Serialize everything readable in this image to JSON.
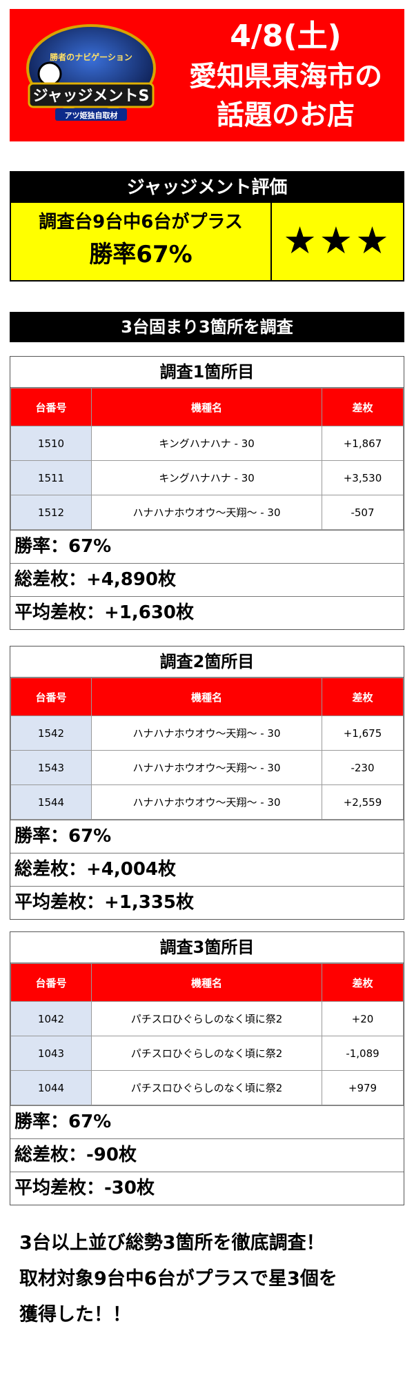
{
  "header": {
    "logo_text": "ジャッジメントS",
    "logo_subtext": "アツ姫独自取材",
    "logo_top_text": "勝者のナビゲーション",
    "date": "4/8(土)",
    "line1": "愛知県東海市の",
    "line2": "話題のお店",
    "bg_color": "#ff0000"
  },
  "judgment": {
    "title": "ジャッジメント評価",
    "line1": "調査台9台中6台がプラス",
    "line2": "勝率67%",
    "stars": "★★★",
    "star_count": 3
  },
  "section_title": "3台固まり3箇所を調査",
  "table_headers": {
    "number": "台番号",
    "model": "機種名",
    "diff": "差枚"
  },
  "surveys": [
    {
      "title": "調査1箇所目",
      "rows": [
        {
          "no": "1510",
          "model": "キングハナハナ - 30",
          "diff": "+1,867"
        },
        {
          "no": "1511",
          "model": "キングハナハナ - 30",
          "diff": "+3,530"
        },
        {
          "no": "1512",
          "model": "ハナハナホウオウ～天翔～ - 30",
          "diff": "-507"
        }
      ],
      "win_rate": "勝率：67%",
      "total": "総差枚：+4,890枚",
      "average": "平均差枚：+1,630枚"
    },
    {
      "title": "調査2箇所目",
      "rows": [
        {
          "no": "1542",
          "model": "ハナハナホウオウ～天翔～ - 30",
          "diff": "+1,675"
        },
        {
          "no": "1543",
          "model": "ハナハナホウオウ～天翔～ - 30",
          "diff": "-230"
        },
        {
          "no": "1544",
          "model": "ハナハナホウオウ～天翔～ - 30",
          "diff": "+2,559"
        }
      ],
      "win_rate": "勝率：67%",
      "total": "総差枚：+4,004枚",
      "average": "平均差枚：+1,335枚"
    },
    {
      "title": "調査3箇所目",
      "rows": [
        {
          "no": "1042",
          "model": "パチスロひぐらしのなく頃に祭2",
          "diff": "+20"
        },
        {
          "no": "1043",
          "model": "パチスロひぐらしのなく頃に祭2",
          "diff": "-1,089"
        },
        {
          "no": "1044",
          "model": "パチスロひぐらしのなく頃に祭2",
          "diff": "+979"
        }
      ],
      "win_rate": "勝率：67%",
      "total": "総差枚：-90枚",
      "average": "平均差枚：-30枚"
    }
  ],
  "footer": {
    "line1": "3台以上並び総勢3箇所を徹底調査！",
    "line2": "取材対象9台中6台がプラスで星3個を",
    "line3": "獲得した！！"
  }
}
